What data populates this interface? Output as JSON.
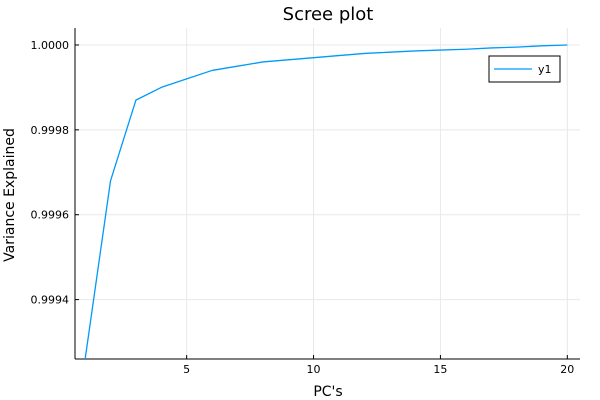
{
  "chart_data": {
    "type": "line",
    "title": "Scree plot",
    "xlabel": "PC's",
    "ylabel": "Variance Explained",
    "xlim": [
      0.6,
      20.5
    ],
    "ylim": [
      0.99926,
      1.00004
    ],
    "xticks": [
      5,
      10,
      15,
      20
    ],
    "xtick_labels": [
      "5",
      "10",
      "15",
      "20"
    ],
    "yticks": [
      0.9994,
      0.9996,
      0.9998,
      1.0
    ],
    "ytick_labels": [
      "0.9994",
      "0.9996",
      "0.9998",
      "1.0000"
    ],
    "grid": true,
    "legend_position": "top-right",
    "series": [
      {
        "name": "y1",
        "color": "#009af9",
        "x": [
          1,
          2,
          3,
          4,
          5,
          6,
          7,
          8,
          9,
          10,
          11,
          12,
          13,
          14,
          15,
          16,
          17,
          18,
          19,
          20
        ],
        "y": [
          0.99926,
          0.99968,
          0.99987,
          0.9999,
          0.99992,
          0.99994,
          0.99995,
          0.99996,
          0.999965,
          0.99997,
          0.999975,
          0.99998,
          0.999983,
          0.999986,
          0.999988,
          0.99999,
          0.999993,
          0.999995,
          0.999998,
          1.0
        ]
      }
    ]
  }
}
